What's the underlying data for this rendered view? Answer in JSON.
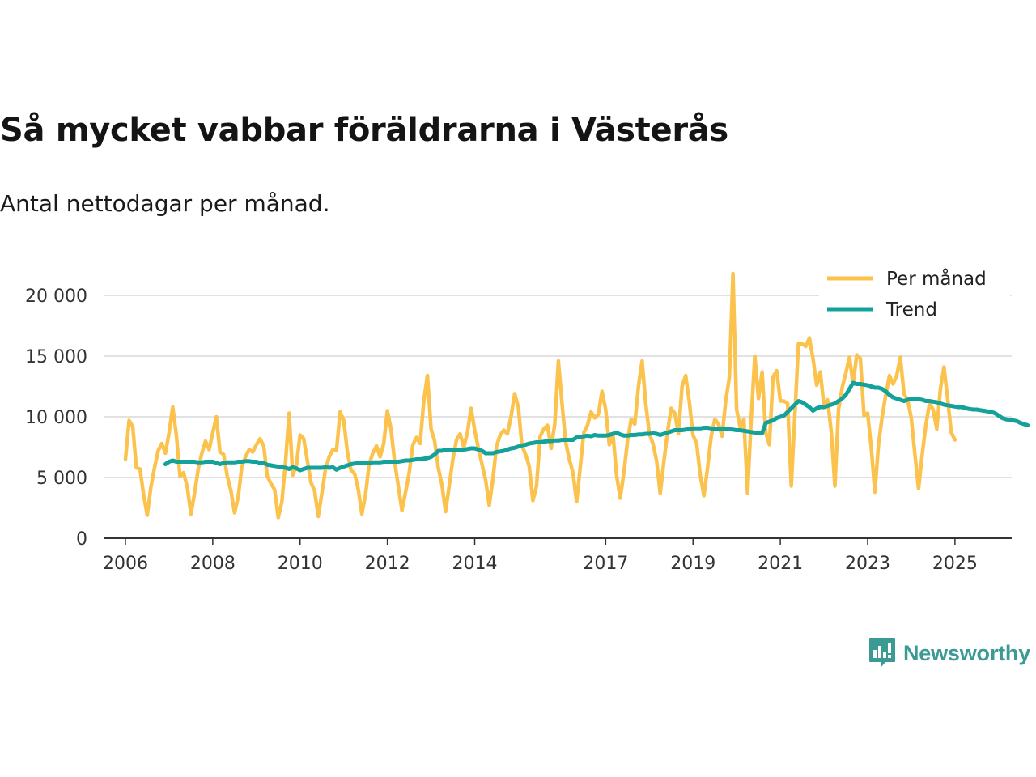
{
  "title": "Så mycket vabbar föräldrarna i Västerås",
  "subtitle": "Antal nettodagar per månad.",
  "brand": {
    "name": "Newsworthy",
    "icon": "newsworthy-logo-icon"
  },
  "colors": {
    "monthly": "#fbc34e",
    "trend": "#14a19a",
    "grid": "#d9d9d9",
    "axis": "#333333",
    "brand": "#3b9a94"
  },
  "chart_data": {
    "type": "line",
    "title": "Så mycket vabbar föräldrarna i Västerås",
    "xlabel": "",
    "ylabel": "",
    "ylim": [
      0,
      21000
    ],
    "xlim": [
      2005.5,
      2026.3
    ],
    "yticks": [
      0,
      5000,
      10000,
      15000,
      20000
    ],
    "ytick_labels": [
      "0",
      "5 000",
      "10 000",
      "15 000",
      "20 000"
    ],
    "xticks": [
      2006,
      2008,
      2010,
      2012,
      2014,
      2017,
      2019,
      2021,
      2023,
      2025
    ],
    "xtick_labels": [
      "2006",
      "2008",
      "2010",
      "2012",
      "2014",
      "2017",
      "2019",
      "2021",
      "2023",
      "2025"
    ],
    "legend_position": "top-right",
    "series": [
      {
        "name": "Per månad",
        "start": 2006.0,
        "step": 0.08333,
        "values": [
          6500,
          9700,
          9200,
          5800,
          5700,
          3600,
          1900,
          4200,
          5800,
          7200,
          7800,
          7000,
          8700,
          10800,
          8500,
          5100,
          5400,
          4200,
          2000,
          3700,
          5700,
          7000,
          8000,
          7300,
          8700,
          10000,
          7100,
          6900,
          5100,
          3900,
          2100,
          3400,
          5900,
          6700,
          7300,
          7100,
          7700,
          8200,
          7600,
          5100,
          4500,
          4000,
          1700,
          3000,
          6300,
          10300,
          5200,
          6000,
          8500,
          8200,
          6400,
          4600,
          3900,
          1800,
          3700,
          5700,
          6700,
          7300,
          7200,
          10400,
          9700,
          7100,
          5600,
          5300,
          4000,
          2000,
          3600,
          6100,
          7000,
          7600,
          6700,
          7800,
          10500,
          9000,
          6300,
          4300,
          2300,
          3800,
          5400,
          7700,
          8300,
          7800,
          11300,
          13400,
          9000,
          8000,
          5800,
          4400,
          2200,
          4300,
          6500,
          8100,
          8600,
          7500,
          8700,
          10700,
          8900,
          7400,
          6100,
          4800,
          2700,
          4900,
          7600,
          8500,
          8900,
          8600,
          10000,
          11900,
          10800,
          7600,
          6900,
          5900,
          3100,
          4300,
          8400,
          9000,
          9300,
          7400,
          9400,
          14600,
          11100,
          7900,
          6500,
          5400,
          3000,
          5800,
          8700,
          9300,
          10400,
          9900,
          10200,
          12100,
          10600,
          7700,
          8600,
          5200,
          3300,
          5400,
          8000,
          9800,
          9400,
          12500,
          14600,
          11100,
          8600,
          7800,
          6400,
          3700,
          6300,
          8700,
          10700,
          10300,
          8600,
          12500,
          13400,
          11200,
          8500,
          7800,
          5200,
          3500,
          5800,
          8400,
          9800,
          9400,
          8400,
          11300,
          13200,
          21800,
          10600,
          9100,
          9800,
          3700,
          9800,
          15000,
          11500,
          13700,
          8700,
          7700,
          13300,
          13800,
          11300,
          11300,
          11100,
          4300,
          10200,
          16000,
          16000,
          15800,
          16500,
          14800,
          12600,
          13700,
          10900,
          11400,
          8800,
          4300,
          10600,
          12400,
          13600,
          14900,
          12700,
          15100,
          14800,
          10100,
          10300,
          7500,
          3800,
          7700,
          10000,
          11800,
          13400,
          12700,
          13400,
          14900,
          11900,
          11400,
          9900,
          6900,
          4100,
          6900,
          9300,
          11100,
          10600,
          9000,
          12300,
          14100,
          11500,
          8700,
          8100
        ]
      },
      {
        "name": "Trend",
        "start": 2006.9167,
        "step": 0.08333,
        "values": [
          6100,
          6300,
          6400,
          6300,
          6300,
          6300,
          6300,
          6300,
          6300,
          6250,
          6250,
          6300,
          6300,
          6300,
          6200,
          6100,
          6200,
          6250,
          6250,
          6250,
          6300,
          6300,
          6350,
          6350,
          6300,
          6300,
          6200,
          6200,
          6050,
          6000,
          5950,
          5900,
          5850,
          5800,
          5700,
          5850,
          5750,
          5600,
          5700,
          5800,
          5800,
          5800,
          5800,
          5800,
          5850,
          5800,
          5850,
          5650,
          5800,
          5900,
          6000,
          6100,
          6150,
          6200,
          6200,
          6200,
          6200,
          6250,
          6250,
          6250,
          6300,
          6300,
          6300,
          6300,
          6300,
          6350,
          6400,
          6400,
          6450,
          6500,
          6500,
          6550,
          6600,
          6700,
          6900,
          7200,
          7200,
          7300,
          7300,
          7300,
          7300,
          7300,
          7300,
          7350,
          7400,
          7400,
          7300,
          7200,
          7000,
          7000,
          7000,
          7100,
          7150,
          7200,
          7300,
          7400,
          7450,
          7550,
          7650,
          7700,
          7800,
          7850,
          7900,
          7900,
          7950,
          8000,
          8000,
          8050,
          8050,
          8100,
          8100,
          8100,
          8100,
          8300,
          8350,
          8400,
          8450,
          8400,
          8500,
          8450,
          8450,
          8450,
          8500,
          8600,
          8700,
          8550,
          8450,
          8450,
          8500,
          8500,
          8550,
          8550,
          8600,
          8600,
          8650,
          8600,
          8500,
          8600,
          8700,
          8800,
          8900,
          8900,
          8900,
          8950,
          9000,
          9050,
          9050,
          9050,
          9100,
          9100,
          9050,
          9000,
          9000,
          9050,
          9000,
          9000,
          8950,
          8900,
          8900,
          8850,
          8800,
          8750,
          8700,
          8650,
          8650,
          9500,
          9600,
          9700,
          9900,
          10000,
          10100,
          10400,
          10700,
          11000,
          11300,
          11200,
          11000,
          10800,
          10500,
          10700,
          10800,
          10800,
          10900,
          11000,
          11100,
          11300,
          11500,
          11800,
          12300,
          12800,
          12700,
          12700,
          12650,
          12600,
          12500,
          12400,
          12400,
          12300,
          12100,
          11800,
          11600,
          11500,
          11400,
          11300,
          11400,
          11500,
          11500,
          11450,
          11400,
          11300,
          11300,
          11250,
          11200,
          11100,
          11000,
          10950,
          10900,
          10850,
          10800,
          10800,
          10700,
          10650,
          10600,
          10600,
          10550,
          10500,
          10450,
          10400,
          10300,
          10100,
          9900,
          9800,
          9750,
          9700,
          9650,
          9500,
          9400,
          9300
        ]
      }
    ]
  }
}
